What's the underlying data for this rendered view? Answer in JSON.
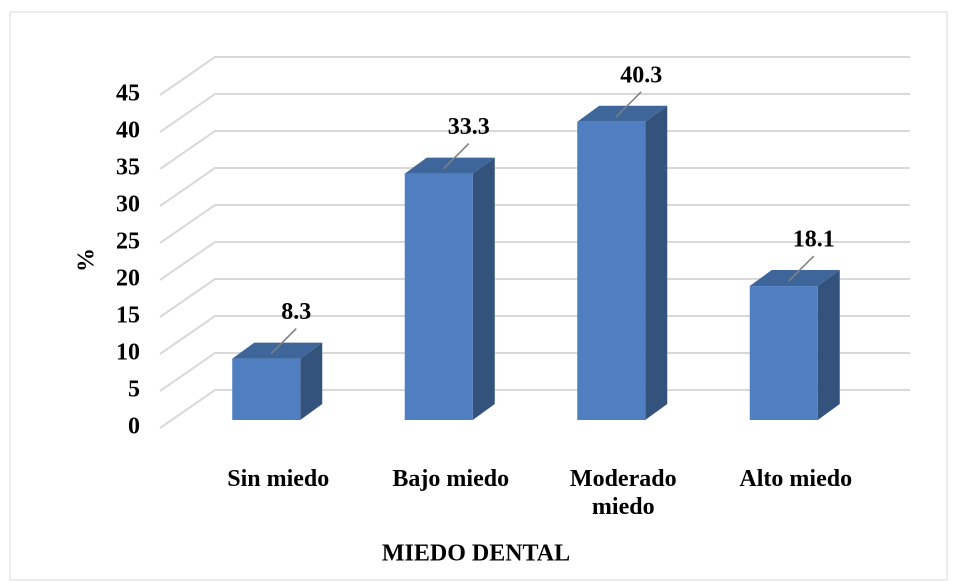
{
  "chart_data": {
    "type": "bar3d",
    "x_label": "MIEDO DENTAL",
    "y_label": "%",
    "categories": [
      "Sin miedo",
      "Bajo miedo",
      "Moderado miedo",
      "Alto miedo"
    ],
    "values": [
      8.3,
      33.3,
      40.3,
      18.1
    ],
    "color": "#4f7fc0",
    "ylim": [
      0,
      45
    ],
    "yticks": [
      0,
      5,
      10,
      15,
      20,
      25,
      30,
      35,
      40,
      45
    ],
    "grid": true
  }
}
